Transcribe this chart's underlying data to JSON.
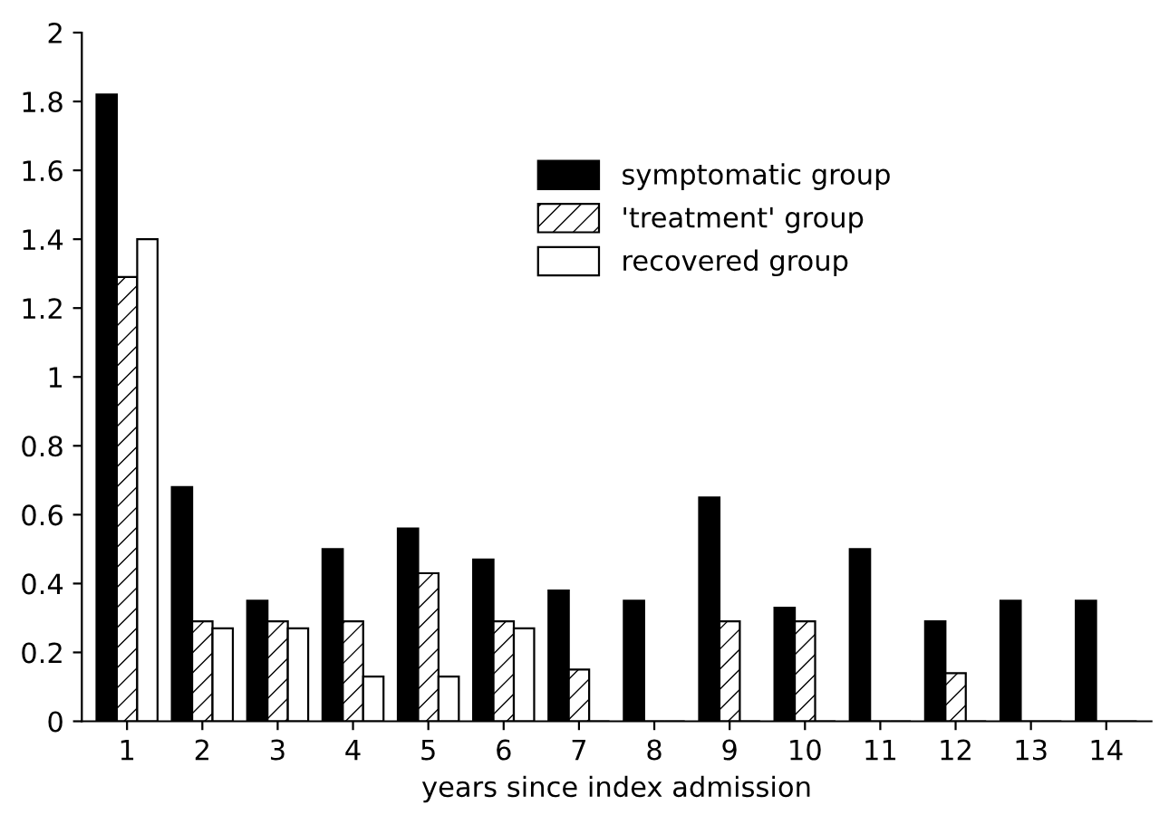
{
  "chart_data": {
    "type": "bar",
    "xlabel": "years since index admission",
    "categories": [
      "1",
      "2",
      "3",
      "4",
      "5",
      "6",
      "7",
      "8",
      "9",
      "10",
      "11",
      "12",
      "13",
      "14"
    ],
    "series": [
      {
        "name": "symptomatic group",
        "color": "#000000",
        "values": [
          1.82,
          0.68,
          0.35,
          0.5,
          0.56,
          0.47,
          0.38,
          0.35,
          0.65,
          0.33,
          0.5,
          0.29,
          0.35,
          0.35
        ]
      },
      {
        "name": "'treatment' group",
        "color": "#000000",
        "values": [
          1.29,
          0.29,
          0.29,
          0.29,
          0.43,
          0.29,
          0.15,
          0,
          0.29,
          0.29,
          0,
          0.14,
          0,
          0
        ]
      },
      {
        "name": "recovered group",
        "color": "#ffffff",
        "values": [
          1.4,
          0.27,
          0.27,
          0.13,
          0.13,
          0.27,
          0,
          0,
          0,
          0,
          0,
          0,
          0,
          0
        ]
      }
    ],
    "ylim": [
      0,
      2
    ],
    "yticks": [
      0,
      {
        "value": 0.2,
        "label": "0.2"
      },
      {
        "value": 0.4,
        "label": "0.4"
      },
      {
        "value": 0.6,
        "label": "0.6"
      },
      {
        "value": 0.8,
        "label": "0.8"
      },
      1,
      {
        "value": 1.2,
        "label": "1.2"
      },
      {
        "value": 1.4,
        "label": "1.4"
      },
      {
        "value": 1.6,
        "label": "1.6"
      },
      {
        "value": 1.8,
        "label": "1.8"
      },
      2
    ],
    "grid": false,
    "legend": "top right"
  }
}
